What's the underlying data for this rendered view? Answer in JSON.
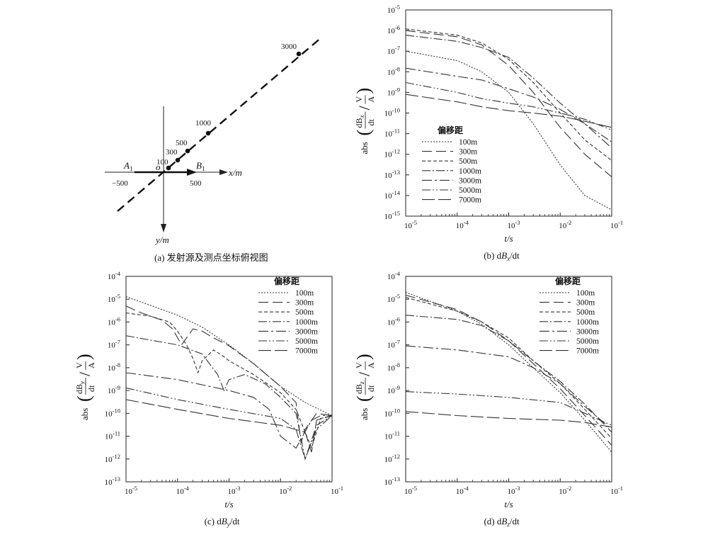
{
  "diagram": {
    "caption": "(a) 发射源及测点坐标俯视图",
    "point_labels": [
      "100",
      "300",
      "500",
      "1000",
      "3000"
    ],
    "origin_label": "o",
    "a_label": "A",
    "a_sub": "1",
    "b_label": "B",
    "b_sub": "1",
    "x_axis_label": "x/m",
    "y_axis_label": "y/m",
    "x_tick_neg": "−500",
    "x_tick_pos": "500"
  },
  "chart_data": [
    {
      "id": "b",
      "type": "line",
      "caption_prefix": "(b)  d",
      "caption_var": "B",
      "caption_sub": "x",
      "caption_suffix": "/dt",
      "ylabel_component": "x",
      "xlabel": "t/s",
      "xscale": "log",
      "yscale": "log",
      "xlim": [
        1e-05,
        0.1
      ],
      "ylim": [
        1e-15,
        1e-05
      ],
      "x_ticks": [
        "-5",
        "-4",
        "-3",
        "-2",
        "-1"
      ],
      "y_ticks": [
        "-15",
        "-14",
        "-13",
        "-12",
        "-11",
        "-10",
        "-9",
        "-8",
        "-7",
        "-6",
        "-5"
      ],
      "legend_title": "偏移距",
      "legend_position": "left-bottom",
      "series": [
        {
          "name": "100m",
          "dash": "2,2",
          "x": [
            1e-05,
            0.0001,
            0.0003,
            0.001,
            0.003,
            0.01,
            0.03,
            0.1
          ],
          "y": [
            1e-07,
            3.5e-08,
            1e-08,
            1e-09,
            3e-11,
            3e-13,
            1e-14,
            2e-15
          ]
        },
        {
          "name": "300m",
          "dash": "14,6",
          "x": [
            1e-05,
            0.0001,
            0.0003,
            0.001,
            0.003,
            0.01,
            0.03,
            0.1
          ],
          "y": [
            1e-06,
            5e-07,
            2e-07,
            2e-08,
            1e-09,
            2e-11,
            1e-12,
            8e-14
          ]
        },
        {
          "name": "500m",
          "dash": "5,3",
          "x": [
            1e-05,
            0.0001,
            0.0003,
            0.001,
            0.003,
            0.01,
            0.03,
            0.1
          ],
          "y": [
            1.2e-06,
            6e-07,
            2.5e-07,
            4e-08,
            3e-09,
            1e-10,
            5e-12,
            5e-13
          ]
        },
        {
          "name": "1000m",
          "dash": "12,3,2,3",
          "x": [
            1e-05,
            0.0001,
            0.0003,
            0.001,
            0.003,
            0.01,
            0.03,
            0.1
          ],
          "y": [
            6e-07,
            3e-07,
            1.5e-07,
            5e-08,
            5e-09,
            3e-10,
            3e-11,
            4e-12
          ]
        },
        {
          "name": "3000m",
          "dash": "14,4,3,4",
          "x": [
            1e-05,
            0.0001,
            0.0003,
            0.001,
            0.003,
            0.01,
            0.03,
            0.1
          ],
          "y": [
            1.5e-08,
            6e-09,
            4e-09,
            1.5e-09,
            6e-10,
            1.5e-10,
            3e-11,
            2e-12
          ]
        },
        {
          "name": "5000m",
          "dash": "12,3,2,3,2,3",
          "x": [
            1e-05,
            0.0001,
            0.0003,
            0.001,
            0.003,
            0.01,
            0.03,
            0.1
          ],
          "y": [
            3e-09,
            1e-09,
            5e-10,
            3e-10,
            2e-10,
            1e-10,
            5e-11,
            1.5e-11
          ]
        },
        {
          "name": "7000m",
          "dash": "18,5",
          "x": [
            1e-05,
            0.0001,
            0.0003,
            0.001,
            0.003,
            0.01,
            0.03,
            0.1
          ],
          "y": [
            8e-10,
            3.5e-10,
            2e-10,
            1.3e-10,
            1e-10,
            7e-11,
            4e-11,
            2e-11
          ]
        }
      ]
    },
    {
      "id": "c",
      "type": "line",
      "caption_prefix": "(c)  d",
      "caption_var": "B",
      "caption_sub": "y",
      "caption_suffix": "/dt",
      "ylabel_component": "y",
      "xlabel": "t/s",
      "xscale": "log",
      "yscale": "log",
      "xlim": [
        1e-05,
        0.1
      ],
      "ylim": [
        1e-13,
        0.0001
      ],
      "x_ticks": [
        "-5",
        "-4",
        "-3",
        "-2",
        "-1"
      ],
      "y_ticks": [
        "-13",
        "-12",
        "-11",
        "-10",
        "-9",
        "-8",
        "-7",
        "-6",
        "-5",
        "-4"
      ],
      "legend_title": "偏移距",
      "legend_position": "top-right",
      "series": [
        {
          "name": "100m",
          "dash": "2,2",
          "x": [
            1e-05,
            0.0001,
            0.0003,
            0.001,
            0.003,
            0.01,
            0.03,
            0.1
          ],
          "y": [
            1.3e-05,
            2e-06,
            6e-07,
            1e-07,
            1.5e-08,
            1.5e-09,
            3e-10,
            8e-11
          ]
        },
        {
          "name": "300m",
          "dash": "14,6",
          "x": [
            1e-05,
            2e-05,
            5e-05,
            8e-05,
            0.00012,
            0.0002,
            0.0003,
            0.0005,
            0.0008,
            0.001,
            0.003,
            0.01,
            0.02,
            0.025,
            0.03,
            0.05,
            0.1
          ],
          "y": [
            5e-06,
            2.5e-06,
            1.2e-06,
            5e-07,
            1e-07,
            5e-07,
            4e-07,
            2e-07,
            1.2e-07,
            9e-08,
            1.5e-08,
            1.5e-09,
            3e-10,
            5e-12,
            2e-11,
            1e-10,
            8e-11
          ]
        },
        {
          "name": "500m",
          "dash": "5,3",
          "x": [
            1e-05,
            3e-05,
            7e-05,
            0.0001,
            0.00015,
            0.0002,
            0.00025,
            0.0003,
            0.0005,
            0.0008,
            0.001,
            0.003,
            0.01,
            0.02,
            0.04,
            0.06,
            0.1
          ],
          "y": [
            2.5e-06,
            1.8e-06,
            1e-06,
            4e-07,
            1e-07,
            2.5e-08,
            6e-09,
            2e-08,
            6e-08,
            3e-08,
            2e-08,
            5e-09,
            8e-10,
            1.5e-10,
            3e-12,
            6e-11,
            8e-11
          ]
        },
        {
          "name": "1000m",
          "dash": "12,3,2,3",
          "x": [
            1e-05,
            0.0001,
            0.0003,
            0.0006,
            0.0008,
            0.001,
            0.002,
            0.005,
            0.01,
            0.02,
            0.03,
            0.05,
            0.1
          ],
          "y": [
            2.5e-07,
            1e-07,
            4e-08,
            5e-09,
            1e-09,
            3e-09,
            5e-09,
            2e-09,
            5e-10,
            1e-10,
            1e-12,
            3e-11,
            8e-11
          ]
        },
        {
          "name": "3000m",
          "dash": "14,4,3,4",
          "x": [
            1e-05,
            0.0001,
            0.001,
            0.003,
            0.006,
            0.01,
            0.02,
            0.04,
            0.06,
            0.1
          ],
          "y": [
            6e-09,
            3e-09,
            1e-09,
            5e-10,
            1.5e-10,
            1e-11,
            3e-12,
            5e-11,
            8e-11,
            8e-11
          ]
        },
        {
          "name": "5000m",
          "dash": "12,3,2,3,2,3",
          "x": [
            1e-05,
            0.0001,
            0.001,
            0.01,
            0.02,
            0.03,
            0.05,
            0.1
          ],
          "y": [
            1.3e-09,
            4e-10,
            1.5e-10,
            6e-11,
            2e-11,
            1e-12,
            2e-11,
            8e-11
          ]
        },
        {
          "name": "7000m",
          "dash": "18,5",
          "x": [
            1e-05,
            0.0001,
            0.001,
            0.01,
            0.03,
            0.04,
            0.05,
            0.1
          ],
          "y": [
            4e-10,
            1.5e-10,
            6e-11,
            3e-11,
            1.5e-11,
            2e-12,
            5e-11,
            8e-11
          ]
        }
      ]
    },
    {
      "id": "d",
      "type": "line",
      "caption_prefix": "(d)  d",
      "caption_var": "B",
      "caption_sub": "z",
      "caption_suffix": "/dt",
      "ylabel_component": "z",
      "xlabel": "t/s",
      "xscale": "log",
      "yscale": "log",
      "xlim": [
        1e-05,
        0.1
      ],
      "ylim": [
        1e-13,
        0.0001
      ],
      "x_ticks": [
        "-5",
        "-4",
        "-3",
        "-2",
        "-1"
      ],
      "y_ticks": [
        "-13",
        "-12",
        "-11",
        "-10",
        "-9",
        "-8",
        "-7",
        "-6",
        "-5",
        "-4"
      ],
      "legend_title": "偏移距",
      "legend_position": "top-right",
      "series": [
        {
          "name": "100m",
          "dash": "2,2",
          "x": [
            1e-05,
            0.0001,
            0.0003,
            0.001,
            0.003,
            0.01,
            0.03,
            0.1
          ],
          "y": [
            2e-05,
            3e-06,
            8e-07,
            1e-07,
            1e-08,
            8e-10,
            5e-11,
            2e-12
          ]
        },
        {
          "name": "300m",
          "dash": "14,6",
          "x": [
            1e-05,
            0.0001,
            0.0003,
            0.001,
            0.003,
            0.01,
            0.03,
            0.1
          ],
          "y": [
            1.5e-05,
            3.5e-06,
            1e-06,
            1.5e-07,
            1.5e-08,
            1.2e-09,
            8e-11,
            4e-12
          ]
        },
        {
          "name": "500m",
          "dash": "5,3",
          "x": [
            1e-05,
            0.0001,
            0.0003,
            0.001,
            0.003,
            0.01,
            0.03,
            0.1
          ],
          "y": [
            1.2e-05,
            3e-06,
            1e-06,
            2e-07,
            2e-08,
            2e-09,
            1.5e-10,
            8e-12
          ]
        },
        {
          "name": "1000m",
          "dash": "12,3,2,3",
          "x": [
            1e-05,
            0.0001,
            0.0003,
            0.001,
            0.003,
            0.01,
            0.03,
            0.1
          ],
          "y": [
            2e-06,
            1.3e-06,
            7e-07,
            1.5e-07,
            2e-08,
            2.5e-09,
            2.5e-10,
            1.5e-11
          ]
        },
        {
          "name": "3000m",
          "dash": "14,4,3,4",
          "x": [
            1e-05,
            0.0001,
            0.001,
            0.003,
            0.01,
            0.03,
            0.1
          ],
          "y": [
            9e-08,
            6e-08,
            3e-08,
            1e-08,
            2e-09,
            2e-10,
            2e-11
          ]
        },
        {
          "name": "5000m",
          "dash": "12,3,2,3,2,3",
          "x": [
            1e-05,
            0.0001,
            0.001,
            0.01,
            0.03,
            0.1
          ],
          "y": [
            9e-10,
            7e-10,
            5e-10,
            3e-10,
            1e-10,
            3e-11
          ]
        },
        {
          "name": "7000m",
          "dash": "18,5",
          "x": [
            1e-05,
            0.0001,
            0.001,
            0.01,
            0.03,
            0.1
          ],
          "y": [
            1.2e-10,
            8e-11,
            6e-11,
            5e-11,
            4e-11,
            2.5e-11
          ]
        }
      ]
    }
  ]
}
